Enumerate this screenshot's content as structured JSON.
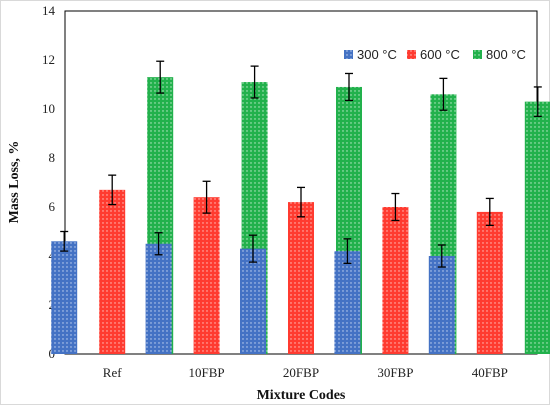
{
  "chart_data": {
    "type": "bar",
    "categories": [
      "Ref",
      "10FBP",
      "20FBP",
      "30FBP",
      "40FBP"
    ],
    "series": [
      {
        "name": "300 °C",
        "color": "#4472c4",
        "values": [
          4.6,
          4.5,
          4.3,
          4.2,
          4.0
        ],
        "errors": [
          0.4,
          0.45,
          0.55,
          0.5,
          0.45
        ]
      },
      {
        "name": "600 °C",
        "color": "#ff3b30",
        "values": [
          6.7,
          6.4,
          6.2,
          6.0,
          5.8
        ],
        "errors": [
          0.6,
          0.65,
          0.6,
          0.55,
          0.55
        ]
      },
      {
        "name": "800 °C",
        "color": "#22b14c",
        "values": [
          11.3,
          11.1,
          10.9,
          10.6,
          10.3
        ],
        "errors": [
          0.65,
          0.65,
          0.55,
          0.65,
          0.6
        ]
      }
    ],
    "title": "",
    "xlabel": "Mixture Codes",
    "ylabel": "Mass Loss, %",
    "ylim": [
      0,
      14
    ],
    "yticks": [
      "0",
      "2",
      "4",
      "6",
      "8",
      "10",
      "12",
      "14"
    ],
    "grid": false,
    "legend_position": "top-right"
  }
}
